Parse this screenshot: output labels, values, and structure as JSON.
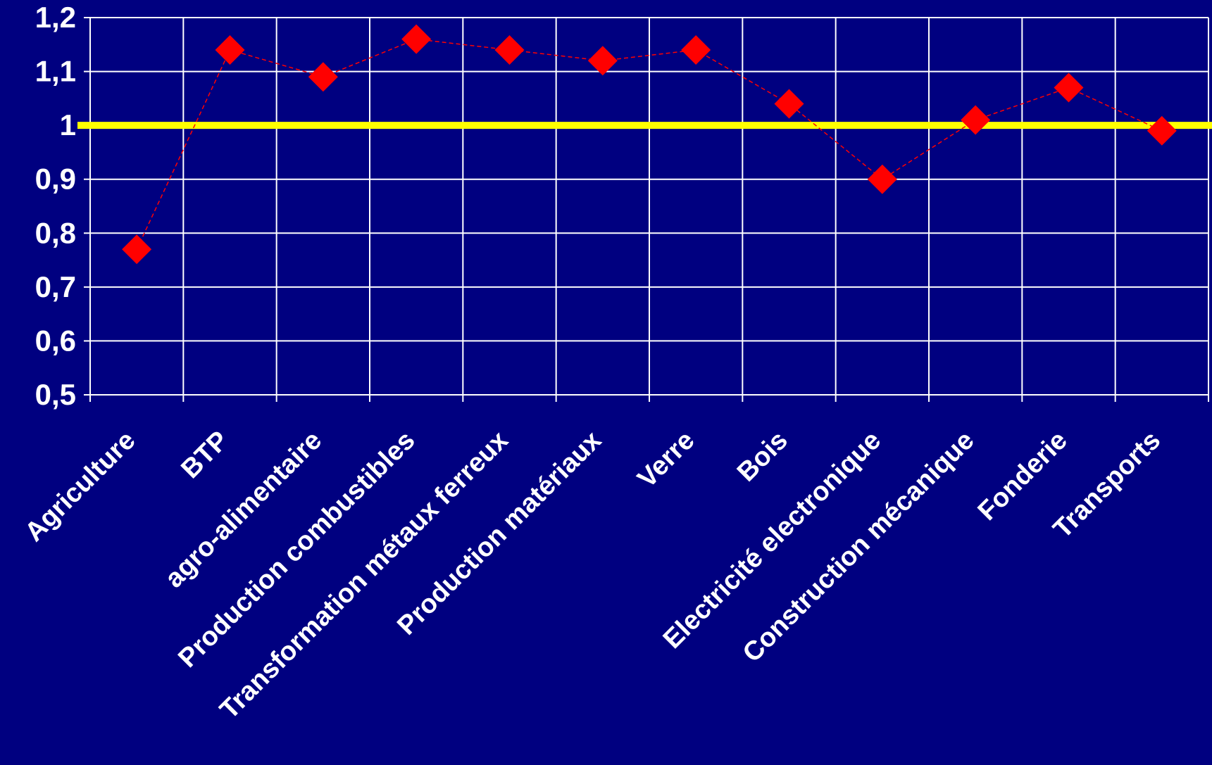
{
  "chart_data": {
    "type": "scatter",
    "categories": [
      "Agriculture",
      "BTP",
      "agro-alimentaire",
      "Production combustibles",
      "Transformation métaux ferreux",
      "Production matériaux",
      "Verre",
      "Bois",
      "Electricité electronique",
      "Construction mécanique",
      "Fonderie",
      "Transports"
    ],
    "series": [
      {
        "values": [
          0.77,
          1.14,
          1.09,
          1.16,
          1.14,
          1.12,
          1.14,
          1.04,
          0.9,
          1.01,
          1.07,
          0.99
        ],
        "marker": "diamond",
        "color": "#ff0000",
        "connector": "dashed"
      }
    ],
    "reference_line": {
      "value": 1,
      "color": "#ffff00"
    },
    "ylim": [
      0.5,
      1.2
    ],
    "yticks": [
      0.5,
      0.6,
      0.7,
      0.8,
      0.9,
      1,
      1.1,
      1.2
    ],
    "ytick_labels": [
      "0,5",
      "0,6",
      "0,7",
      "0,8",
      "0,9",
      "1",
      "1,1",
      "1,2"
    ],
    "grid": true,
    "title": "",
    "xlabel": "",
    "ylabel": ""
  },
  "colors": {
    "background": "#000080",
    "grid": "#ffffff",
    "text": "#ffffff"
  }
}
